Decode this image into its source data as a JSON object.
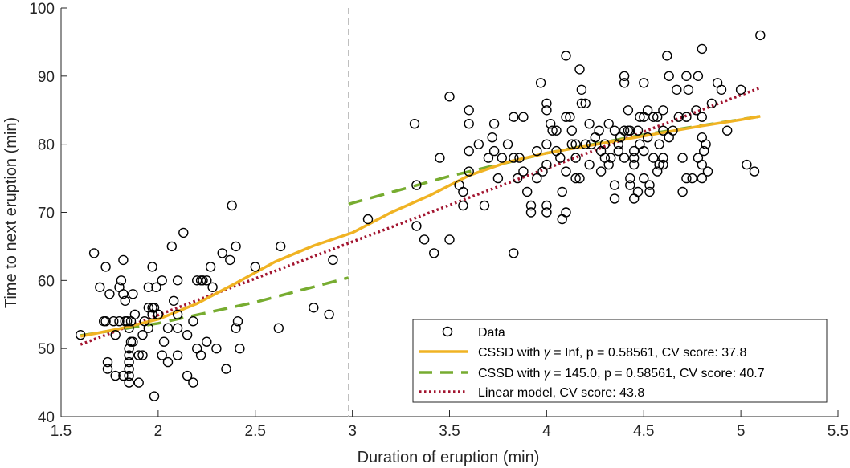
{
  "chart_data": {
    "type": "scatter",
    "title": "",
    "xlabel": "Duration of eruption (min)",
    "ylabel": "Time to next eruption (min)",
    "xlim": [
      1.5,
      5.5
    ],
    "ylim": [
      40,
      100
    ],
    "xticks": [
      "1.5",
      "2",
      "2.5",
      "3",
      "3.5",
      "4",
      "4.5",
      "5",
      "5.5"
    ],
    "yticks": [
      "40",
      "50",
      "60",
      "70",
      "80",
      "90",
      "100"
    ],
    "grid": false,
    "legend_position": "bottom-right",
    "breakpoint_x": 2.98,
    "legend": {
      "data": "Data",
      "cssd_inf_pre": "CSSD with ",
      "cssd_inf_post": " = Inf, p = 0.58561, CV score: 37.8",
      "cssd_145_pre": "CSSD with ",
      "cssd_145_post": " = 145.0, p = 0.58561, CV score: 40.7",
      "gamma_symbol": "γ",
      "linear": "Linear model, CV score: 43.8"
    },
    "series": [
      {
        "name": "Data",
        "points": [
          [
            1.6,
            52
          ],
          [
            1.67,
            64
          ],
          [
            1.7,
            59
          ],
          [
            1.72,
            54
          ],
          [
            1.73,
            54
          ],
          [
            1.73,
            62
          ],
          [
            1.74,
            48
          ],
          [
            1.75,
            58
          ],
          [
            1.74,
            47
          ],
          [
            1.77,
            54
          ],
          [
            1.78,
            46
          ],
          [
            1.78,
            52
          ],
          [
            1.8,
            54
          ],
          [
            1.8,
            59
          ],
          [
            1.81,
            60
          ],
          [
            1.82,
            58
          ],
          [
            1.82,
            63
          ],
          [
            1.82,
            46
          ],
          [
            1.83,
            57
          ],
          [
            1.83,
            54
          ],
          [
            1.84,
            54
          ],
          [
            1.85,
            53
          ],
          [
            1.85,
            50
          ],
          [
            1.85,
            49
          ],
          [
            1.85,
            48
          ],
          [
            1.85,
            47
          ],
          [
            1.85,
            46
          ],
          [
            1.85,
            45
          ],
          [
            1.86,
            54
          ],
          [
            1.86,
            51
          ],
          [
            1.87,
            51
          ],
          [
            1.87,
            58
          ],
          [
            1.88,
            55
          ],
          [
            1.9,
            45
          ],
          [
            1.9,
            49
          ],
          [
            1.92,
            52
          ],
          [
            1.92,
            49
          ],
          [
            1.93,
            54
          ],
          [
            1.95,
            59
          ],
          [
            1.97,
            56
          ],
          [
            1.97,
            55
          ],
          [
            1.97,
            62
          ],
          [
            1.98,
            43
          ],
          [
            1.98,
            56
          ],
          [
            1.99,
            59
          ],
          [
            2.0,
            55
          ],
          [
            2.0,
            55
          ],
          [
            2.02,
            60
          ],
          [
            2.02,
            49
          ],
          [
            2.03,
            51
          ],
          [
            2.05,
            53
          ],
          [
            2.07,
            65
          ],
          [
            2.08,
            57
          ],
          [
            2.1,
            55
          ],
          [
            2.1,
            60
          ],
          [
            2.1,
            53
          ],
          [
            2.1,
            49
          ],
          [
            2.13,
            67
          ],
          [
            2.15,
            46
          ],
          [
            2.15,
            52
          ],
          [
            2.18,
            45
          ],
          [
            2.18,
            54
          ],
          [
            2.2,
            60
          ],
          [
            2.2,
            50
          ],
          [
            2.22,
            60
          ],
          [
            2.22,
            49
          ],
          [
            2.23,
            60
          ],
          [
            2.25,
            60
          ],
          [
            2.25,
            51
          ],
          [
            2.27,
            62
          ],
          [
            2.28,
            59
          ],
          [
            2.3,
            50
          ],
          [
            2.33,
            64
          ],
          [
            2.35,
            47
          ],
          [
            2.37,
            63
          ],
          [
            2.38,
            71
          ],
          [
            2.4,
            65
          ],
          [
            2.4,
            53
          ],
          [
            2.41,
            54
          ],
          [
            2.42,
            50
          ],
          [
            2.5,
            62
          ],
          [
            2.62,
            53
          ],
          [
            2.63,
            65
          ],
          [
            2.8,
            56
          ],
          [
            2.88,
            55
          ],
          [
            2.9,
            63
          ],
          [
            3.08,
            69
          ],
          [
            3.32,
            83
          ],
          [
            3.33,
            74
          ],
          [
            3.33,
            68
          ],
          [
            3.37,
            66
          ],
          [
            3.42,
            64
          ],
          [
            3.45,
            78
          ],
          [
            3.5,
            87
          ],
          [
            3.5,
            66
          ],
          [
            3.55,
            74
          ],
          [
            3.57,
            73
          ],
          [
            3.57,
            71
          ],
          [
            3.6,
            85
          ],
          [
            3.6,
            83
          ],
          [
            3.6,
            79
          ],
          [
            3.6,
            76
          ],
          [
            3.65,
            80
          ],
          [
            3.68,
            71
          ],
          [
            3.7,
            78
          ],
          [
            3.72,
            81
          ],
          [
            3.73,
            83
          ],
          [
            3.73,
            79
          ],
          [
            3.75,
            75
          ],
          [
            3.77,
            78
          ],
          [
            3.8,
            80
          ],
          [
            3.83,
            84
          ],
          [
            3.83,
            78
          ],
          [
            3.83,
            64
          ],
          [
            3.85,
            75
          ],
          [
            3.86,
            78
          ],
          [
            3.88,
            76
          ],
          [
            3.88,
            84
          ],
          [
            3.9,
            73
          ],
          [
            3.92,
            70
          ],
          [
            3.92,
            71
          ],
          [
            3.95,
            75
          ],
          [
            3.95,
            79
          ],
          [
            3.97,
            89
          ],
          [
            3.98,
            76
          ],
          [
            4.0,
            86
          ],
          [
            4.0,
            85
          ],
          [
            4.0,
            80
          ],
          [
            4.0,
            77
          ],
          [
            4.0,
            71
          ],
          [
            4.0,
            70
          ],
          [
            4.02,
            83
          ],
          [
            4.03,
            82
          ],
          [
            4.05,
            82
          ],
          [
            4.05,
            79
          ],
          [
            4.07,
            78
          ],
          [
            4.08,
            69
          ],
          [
            4.08,
            73
          ],
          [
            4.1,
            93
          ],
          [
            4.1,
            84
          ],
          [
            4.1,
            76
          ],
          [
            4.1,
            70
          ],
          [
            4.12,
            84
          ],
          [
            4.13,
            82
          ],
          [
            4.13,
            80
          ],
          [
            4.15,
            80
          ],
          [
            4.15,
            78
          ],
          [
            4.15,
            75
          ],
          [
            4.17,
            91
          ],
          [
            4.17,
            75
          ],
          [
            4.18,
            88
          ],
          [
            4.18,
            86
          ],
          [
            4.2,
            86
          ],
          [
            4.2,
            80
          ],
          [
            4.22,
            83
          ],
          [
            4.22,
            77
          ],
          [
            4.23,
            80
          ],
          [
            4.25,
            81
          ],
          [
            4.27,
            82
          ],
          [
            4.28,
            79
          ],
          [
            4.28,
            76
          ],
          [
            4.3,
            80
          ],
          [
            4.3,
            78
          ],
          [
            4.32,
            83
          ],
          [
            4.32,
            77
          ],
          [
            4.33,
            78
          ],
          [
            4.35,
            82
          ],
          [
            4.35,
            74
          ],
          [
            4.35,
            72
          ],
          [
            4.37,
            80
          ],
          [
            4.37,
            79
          ],
          [
            4.38,
            81
          ],
          [
            4.4,
            89
          ],
          [
            4.4,
            90
          ],
          [
            4.4,
            82
          ],
          [
            4.4,
            78
          ],
          [
            4.42,
            82
          ],
          [
            4.42,
            85
          ],
          [
            4.43,
            82
          ],
          [
            4.43,
            75
          ],
          [
            4.43,
            74
          ],
          [
            4.45,
            79
          ],
          [
            4.45,
            78
          ],
          [
            4.45,
            77
          ],
          [
            4.45,
            72
          ],
          [
            4.47,
            82
          ],
          [
            4.47,
            73
          ],
          [
            4.48,
            84
          ],
          [
            4.5,
            84
          ],
          [
            4.5,
            79
          ],
          [
            4.5,
            75
          ],
          [
            4.52,
            85
          ],
          [
            4.52,
            81
          ],
          [
            4.53,
            74
          ],
          [
            4.53,
            73
          ],
          [
            4.55,
            84
          ],
          [
            4.55,
            78
          ],
          [
            4.57,
            76
          ],
          [
            4.57,
            84
          ],
          [
            4.58,
            80
          ],
          [
            4.58,
            77
          ],
          [
            4.6,
            85
          ],
          [
            4.6,
            82
          ],
          [
            4.6,
            78
          ],
          [
            4.6,
            77
          ],
          [
            4.62,
            93
          ],
          [
            4.63,
            90
          ],
          [
            4.63,
            81
          ],
          [
            4.65,
            82
          ],
          [
            4.67,
            88
          ],
          [
            4.68,
            84
          ],
          [
            4.7,
            78
          ],
          [
            4.7,
            73
          ],
          [
            4.72,
            90
          ],
          [
            4.72,
            84
          ],
          [
            4.72,
            75
          ],
          [
            4.73,
            88
          ],
          [
            4.75,
            75
          ],
          [
            4.77,
            85
          ],
          [
            4.78,
            90
          ],
          [
            4.78,
            78
          ],
          [
            4.8,
            94
          ],
          [
            4.8,
            84
          ],
          [
            4.8,
            81
          ],
          [
            4.8,
            77
          ],
          [
            4.8,
            75
          ],
          [
            4.81,
            79
          ],
          [
            4.82,
            80
          ],
          [
            4.83,
            76
          ],
          [
            4.85,
            86
          ],
          [
            4.88,
            89
          ],
          [
            4.9,
            88
          ],
          [
            4.93,
            82
          ],
          [
            5.0,
            88
          ],
          [
            5.03,
            77
          ],
          [
            5.07,
            76
          ],
          [
            5.1,
            96
          ],
          [
            4.5,
            89
          ],
          [
            4.48,
            80
          ],
          [
            2.05,
            48
          ],
          [
            1.95,
            56
          ],
          [
            1.95,
            53
          ]
        ]
      },
      {
        "name": "CSSD with γ = Inf",
        "color": "#F0B323",
        "points": [
          [
            1.6,
            51.8
          ],
          [
            1.8,
            52.9
          ],
          [
            2.0,
            54.3
          ],
          [
            2.2,
            56.6
          ],
          [
            2.4,
            59.6
          ],
          [
            2.6,
            62.7
          ],
          [
            2.8,
            65.1
          ],
          [
            3.0,
            67.0
          ],
          [
            3.2,
            70.0
          ],
          [
            3.4,
            72.5
          ],
          [
            3.6,
            75.4
          ],
          [
            3.8,
            77.4
          ],
          [
            4.0,
            78.7
          ],
          [
            4.2,
            79.7
          ],
          [
            4.4,
            80.7
          ],
          [
            4.6,
            81.7
          ],
          [
            4.8,
            82.7
          ],
          [
            5.0,
            83.6
          ],
          [
            5.1,
            84.1
          ]
        ]
      },
      {
        "name": "CSSD with γ = 145.0",
        "color": "#77AC30",
        "segments": [
          [
            [
              1.6,
              51.9
            ],
            [
              2.0,
              53.7
            ],
            [
              2.5,
              56.8
            ],
            [
              2.98,
              60.4
            ]
          ],
          [
            [
              2.98,
              71.2
            ],
            [
              3.5,
              75.3
            ],
            [
              4.0,
              78.7
            ],
            [
              4.5,
              81.4
            ],
            [
              5.1,
              84.1
            ]
          ]
        ]
      },
      {
        "name": "Linear model",
        "color": "#A2142F",
        "points": [
          [
            1.6,
            50.6
          ],
          [
            5.1,
            88.3
          ]
        ]
      }
    ]
  }
}
